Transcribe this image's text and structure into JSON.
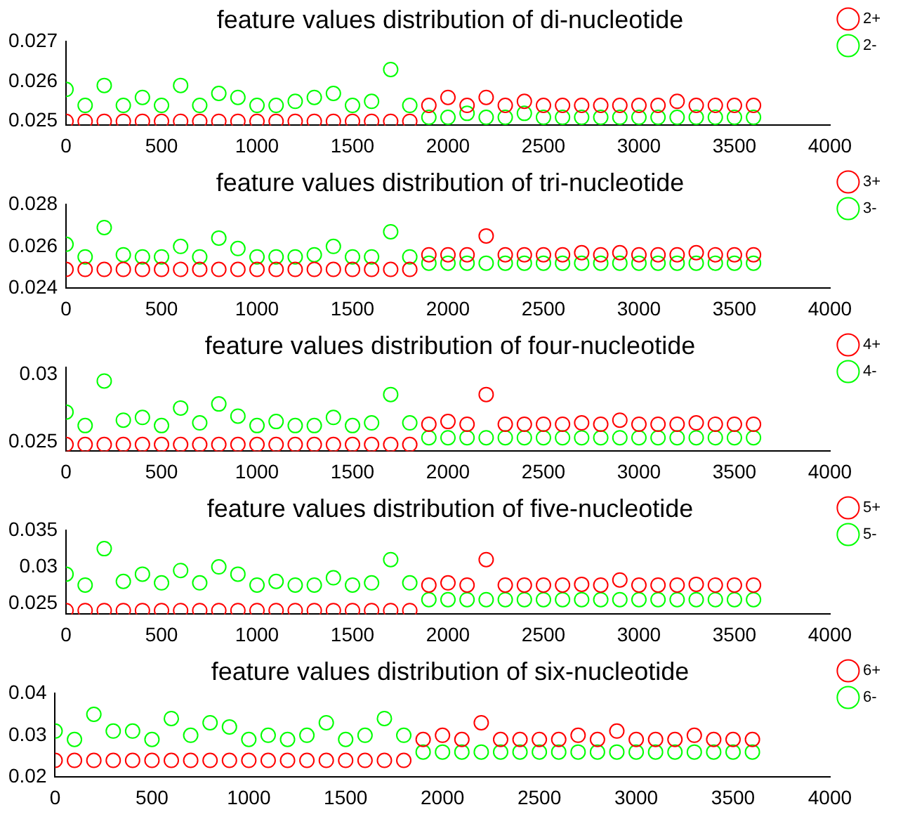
{
  "chart_data": [
    {
      "type": "scatter",
      "title": "feature values distribution of di-nucleotide",
      "x": [
        0,
        100,
        200,
        300,
        400,
        500,
        600,
        700,
        800,
        900,
        1000,
        1100,
        1200,
        1300,
        1400,
        1500,
        1600,
        1700,
        1800,
        1900,
        2000,
        2100,
        2200,
        2300,
        2400,
        2500,
        2600,
        2700,
        2800,
        2900,
        3000,
        3100,
        3200,
        3300,
        3400,
        3500,
        3600
      ],
      "xlim": [
        0,
        4000
      ],
      "xticks": [
        0,
        500,
        1000,
        1500,
        2000,
        2500,
        3000,
        3500,
        4000
      ],
      "ylim": [
        0.0249,
        0.027
      ],
      "yticks": [
        0.025,
        0.026,
        0.027
      ],
      "legend": "top right",
      "marker": "circle",
      "grid": false,
      "series": [
        {
          "name": "2+",
          "color": "#ff0000",
          "values": [
            0.025,
            0.025,
            0.025,
            0.025,
            0.025,
            0.025,
            0.025,
            0.025,
            0.025,
            0.025,
            0.025,
            0.025,
            0.025,
            0.025,
            0.025,
            0.025,
            0.025,
            0.025,
            0.025,
            0.0254,
            0.0256,
            0.0254,
            0.0256,
            0.0254,
            0.0255,
            0.0254,
            0.0254,
            0.0254,
            0.0254,
            0.0254,
            0.0254,
            0.0254,
            0.0255,
            0.0254,
            0.0254,
            0.0254,
            0.0254
          ]
        },
        {
          "name": "2-",
          "color": "#00ff00",
          "values": [
            0.0258,
            0.0254,
            0.0259,
            0.0254,
            0.0256,
            0.0254,
            0.0259,
            0.0254,
            0.0257,
            0.0256,
            0.0254,
            0.0254,
            0.0255,
            0.0256,
            0.0257,
            0.0254,
            0.0255,
            0.0263,
            0.0254,
            0.0251,
            0.0251,
            0.0252,
            0.0251,
            0.0251,
            0.0252,
            0.0251,
            0.0251,
            0.0251,
            0.0251,
            0.0251,
            0.0251,
            0.0251,
            0.0251,
            0.0251,
            0.0251,
            0.0251,
            0.0251
          ]
        }
      ]
    },
    {
      "type": "scatter",
      "title": "feature values distribution of tri-nucleotide",
      "x": [
        0,
        100,
        200,
        300,
        400,
        500,
        600,
        700,
        800,
        900,
        1000,
        1100,
        1200,
        1300,
        1400,
        1500,
        1600,
        1700,
        1800,
        1900,
        2000,
        2100,
        2200,
        2300,
        2400,
        2500,
        2600,
        2700,
        2800,
        2900,
        3000,
        3100,
        3200,
        3300,
        3400,
        3500,
        3600
      ],
      "xlim": [
        0,
        4000
      ],
      "xticks": [
        0,
        500,
        1000,
        1500,
        2000,
        2500,
        3000,
        3500,
        4000
      ],
      "ylim": [
        0.024,
        0.028
      ],
      "yticks": [
        0.024,
        0.026,
        0.028
      ],
      "legend": "top right",
      "marker": "circle",
      "grid": false,
      "series": [
        {
          "name": "3+",
          "color": "#ff0000",
          "values": [
            0.0249,
            0.0249,
            0.0249,
            0.0249,
            0.0249,
            0.0249,
            0.0249,
            0.0249,
            0.0249,
            0.0249,
            0.0249,
            0.0249,
            0.0249,
            0.0249,
            0.0249,
            0.0249,
            0.0249,
            0.0249,
            0.0249,
            0.0256,
            0.0256,
            0.0256,
            0.0265,
            0.0256,
            0.0256,
            0.0256,
            0.0256,
            0.0257,
            0.0256,
            0.0257,
            0.0256,
            0.0256,
            0.0256,
            0.0257,
            0.0256,
            0.0256,
            0.0256
          ]
        },
        {
          "name": "3-",
          "color": "#00ff00",
          "values": [
            0.0261,
            0.0255,
            0.0269,
            0.0256,
            0.0255,
            0.0255,
            0.026,
            0.0255,
            0.0264,
            0.0259,
            0.0255,
            0.0255,
            0.0255,
            0.0256,
            0.026,
            0.0255,
            0.0255,
            0.0267,
            0.0255,
            0.0252,
            0.0252,
            0.0252,
            0.0252,
            0.0252,
            0.0252,
            0.0252,
            0.0252,
            0.0252,
            0.0252,
            0.0252,
            0.0252,
            0.0252,
            0.0252,
            0.0252,
            0.0252,
            0.0252,
            0.0252
          ]
        }
      ]
    },
    {
      "type": "scatter",
      "title": "feature values distribution of four-nucleotide",
      "x": [
        0,
        100,
        200,
        300,
        400,
        500,
        600,
        700,
        800,
        900,
        1000,
        1100,
        1200,
        1300,
        1400,
        1500,
        1600,
        1700,
        1800,
        1900,
        2000,
        2100,
        2200,
        2300,
        2400,
        2500,
        2600,
        2700,
        2800,
        2900,
        3000,
        3100,
        3200,
        3300,
        3400,
        3500,
        3600
      ],
      "xlim": [
        0,
        4000
      ],
      "xticks": [
        0,
        500,
        1000,
        1500,
        2000,
        2500,
        3000,
        3500,
        4000
      ],
      "ylim": [
        0.0243,
        0.0305
      ],
      "yticks": [
        0.025,
        0.03
      ],
      "legend": "top right",
      "marker": "circle",
      "grid": false,
      "series": [
        {
          "name": "4+",
          "color": "#ff0000",
          "values": [
            0.0248,
            0.0248,
            0.0248,
            0.0248,
            0.0248,
            0.0248,
            0.0248,
            0.0248,
            0.0248,
            0.0248,
            0.0248,
            0.0248,
            0.0248,
            0.0248,
            0.0248,
            0.0248,
            0.0248,
            0.0248,
            0.0248,
            0.0263,
            0.0265,
            0.0263,
            0.0285,
            0.0263,
            0.0263,
            0.0263,
            0.0263,
            0.0264,
            0.0263,
            0.0266,
            0.0263,
            0.0263,
            0.0263,
            0.0264,
            0.0263,
            0.0263,
            0.0263
          ]
        },
        {
          "name": "4-",
          "color": "#00ff00",
          "values": [
            0.0272,
            0.0262,
            0.0295,
            0.0266,
            0.0268,
            0.0262,
            0.0275,
            0.0264,
            0.0278,
            0.0269,
            0.0262,
            0.0265,
            0.0262,
            0.0262,
            0.0268,
            0.0262,
            0.0264,
            0.0285,
            0.0264,
            0.0253,
            0.0253,
            0.0253,
            0.0253,
            0.0253,
            0.0253,
            0.0253,
            0.0253,
            0.0253,
            0.0253,
            0.0253,
            0.0253,
            0.0253,
            0.0253,
            0.0253,
            0.0253,
            0.0253,
            0.0253
          ]
        }
      ]
    },
    {
      "type": "scatter",
      "title": "feature values distribution of five-nucleotide",
      "x": [
        0,
        100,
        200,
        300,
        400,
        500,
        600,
        700,
        800,
        900,
        1000,
        1100,
        1200,
        1300,
        1400,
        1500,
        1600,
        1700,
        1800,
        1900,
        2000,
        2100,
        2200,
        2300,
        2400,
        2500,
        2600,
        2700,
        2800,
        2900,
        3000,
        3100,
        3200,
        3300,
        3400,
        3500,
        3600
      ],
      "xlim": [
        0,
        4000
      ],
      "xticks": [
        0,
        500,
        1000,
        1500,
        2000,
        2500,
        3000,
        3500,
        4000
      ],
      "ylim": [
        0.0235,
        0.035
      ],
      "yticks": [
        0.025,
        0.03,
        0.035
      ],
      "legend": "top right",
      "marker": "circle",
      "grid": false,
      "series": [
        {
          "name": "5+",
          "color": "#ff0000",
          "values": [
            0.024,
            0.024,
            0.024,
            0.024,
            0.024,
            0.024,
            0.024,
            0.024,
            0.024,
            0.024,
            0.024,
            0.024,
            0.024,
            0.024,
            0.024,
            0.024,
            0.024,
            0.024,
            0.024,
            0.0275,
            0.0278,
            0.0275,
            0.031,
            0.0275,
            0.0275,
            0.0275,
            0.0275,
            0.0276,
            0.0275,
            0.0282,
            0.0275,
            0.0275,
            0.0275,
            0.0276,
            0.0275,
            0.0275,
            0.0275
          ]
        },
        {
          "name": "5-",
          "color": "#00ff00",
          "values": [
            0.029,
            0.0275,
            0.0325,
            0.028,
            0.029,
            0.0278,
            0.0295,
            0.0278,
            0.03,
            0.029,
            0.0275,
            0.028,
            0.0275,
            0.0275,
            0.0285,
            0.0275,
            0.0278,
            0.031,
            0.0278,
            0.0255,
            0.0255,
            0.0255,
            0.0255,
            0.0255,
            0.0255,
            0.0255,
            0.0255,
            0.0255,
            0.0255,
            0.0255,
            0.0255,
            0.0255,
            0.0255,
            0.0255,
            0.0255,
            0.0255,
            0.0255
          ]
        }
      ]
    },
    {
      "type": "scatter",
      "title": "feature values distribution of six-nucleotide",
      "x": [
        0,
        100,
        200,
        300,
        400,
        500,
        600,
        700,
        800,
        900,
        1000,
        1100,
        1200,
        1300,
        1400,
        1500,
        1600,
        1700,
        1800,
        1900,
        2000,
        2100,
        2200,
        2300,
        2400,
        2500,
        2600,
        2700,
        2800,
        2900,
        3000,
        3100,
        3200,
        3300,
        3400,
        3500,
        3600
      ],
      "xlim": [
        0,
        4000
      ],
      "xticks": [
        0,
        500,
        1000,
        1500,
        2000,
        2500,
        3000,
        3500,
        4000
      ],
      "ylim": [
        0.02,
        0.04
      ],
      "yticks": [
        0.02,
        0.03,
        0.04
      ],
      "legend": "top right",
      "marker": "circle",
      "grid": false,
      "series": [
        {
          "name": "6+",
          "color": "#ff0000",
          "values": [
            0.024,
            0.024,
            0.024,
            0.024,
            0.024,
            0.024,
            0.024,
            0.024,
            0.024,
            0.024,
            0.024,
            0.024,
            0.024,
            0.024,
            0.024,
            0.024,
            0.024,
            0.024,
            0.024,
            0.029,
            0.03,
            0.029,
            0.033,
            0.029,
            0.029,
            0.029,
            0.029,
            0.03,
            0.029,
            0.031,
            0.029,
            0.029,
            0.029,
            0.03,
            0.029,
            0.029,
            0.029
          ]
        },
        {
          "name": "6-",
          "color": "#00ff00",
          "values": [
            0.031,
            0.029,
            0.035,
            0.031,
            0.031,
            0.029,
            0.034,
            0.03,
            0.033,
            0.032,
            0.029,
            0.03,
            0.029,
            0.03,
            0.033,
            0.029,
            0.03,
            0.034,
            0.03,
            0.026,
            0.026,
            0.026,
            0.026,
            0.026,
            0.026,
            0.026,
            0.026,
            0.026,
            0.026,
            0.026,
            0.026,
            0.026,
            0.026,
            0.026,
            0.026,
            0.026,
            0.026
          ]
        }
      ]
    }
  ]
}
